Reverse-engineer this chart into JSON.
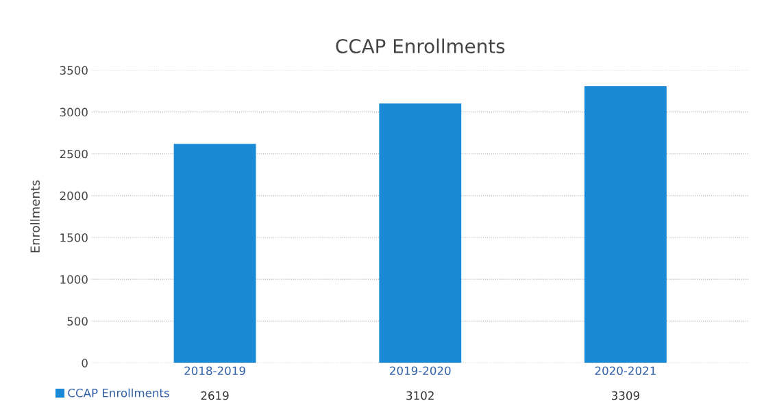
{
  "chart_data": {
    "type": "bar",
    "title": "CCAP Enrollments",
    "ylabel": "Enrollments",
    "categories": [
      "2018-2019",
      "2019-2020",
      "2020-2021"
    ],
    "series": [
      {
        "name": "CCAP Enrollments",
        "color": "#1a8ad6",
        "values": [
          2619,
          3102,
          3309
        ]
      }
    ],
    "ylim": [
      0,
      3500
    ],
    "yticks": [
      0,
      500,
      1000,
      1500,
      2000,
      2500,
      3000,
      3500
    ],
    "grid": "y",
    "legend": "bottom left",
    "data_labels": true
  }
}
